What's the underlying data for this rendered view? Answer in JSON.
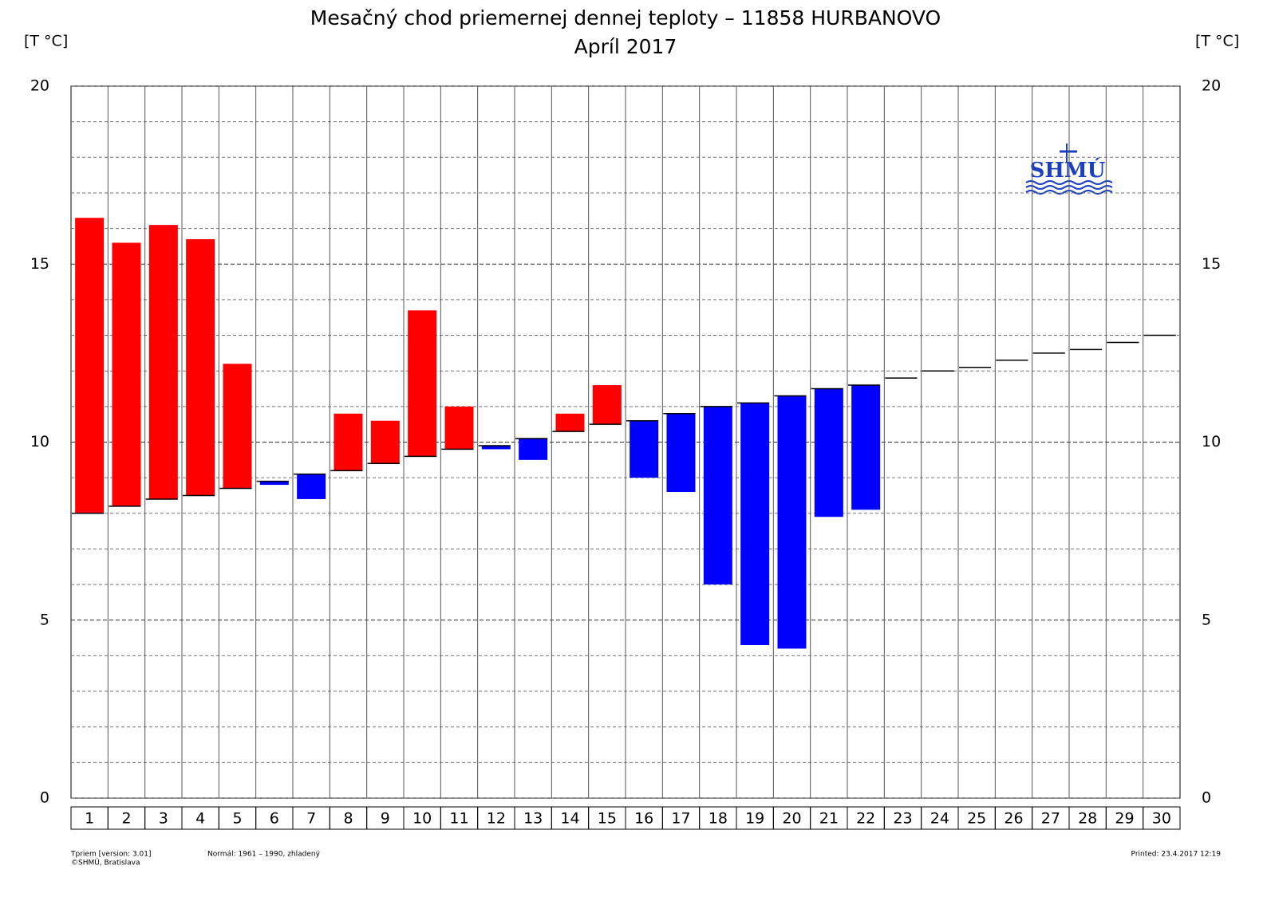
{
  "chart_data": {
    "type": "bar",
    "title": "Mesačný chod priemernej dennej teploty – 11858 HURBANOVO",
    "subtitle": "Apríl 2017",
    "y_label": "[T °C]",
    "categories": [
      "1",
      "2",
      "3",
      "4",
      "5",
      "6",
      "7",
      "8",
      "9",
      "10",
      "11",
      "12",
      "13",
      "14",
      "15",
      "16",
      "17",
      "18",
      "19",
      "20",
      "21",
      "22",
      "23",
      "24",
      "25",
      "26",
      "27",
      "28",
      "29",
      "30"
    ],
    "values": [
      16.3,
      15.6,
      16.1,
      15.7,
      12.2,
      8.8,
      8.4,
      10.8,
      10.6,
      13.7,
      11.0,
      9.8,
      9.5,
      10.8,
      11.6,
      9.0,
      8.6,
      6.0,
      4.3,
      4.2,
      7.9,
      8.1,
      null,
      null,
      null,
      null,
      null,
      null,
      null,
      null
    ],
    "normal": [
      8.0,
      8.2,
      8.4,
      8.5,
      8.7,
      8.9,
      9.1,
      9.2,
      9.4,
      9.6,
      9.8,
      9.9,
      10.1,
      10.3,
      10.5,
      10.6,
      10.8,
      11.0,
      11.1,
      11.3,
      11.5,
      11.6,
      11.8,
      12.0,
      12.1,
      12.3,
      12.5,
      12.6,
      12.8,
      13.0
    ],
    "above_color": "#ff0000",
    "below_color": "#0000ff",
    "normal_color": "#000000",
    "ylim": [
      0,
      20
    ],
    "yticks": [
      0,
      5,
      10,
      15,
      20
    ],
    "minor_yticks": [
      1,
      2,
      3,
      4,
      6,
      7,
      8,
      9,
      11,
      12,
      13,
      14,
      16,
      17,
      18,
      19
    ],
    "grid": true,
    "logo": "SHMÚ",
    "footer_left": [
      "Tpriem [version: 3.01]",
      "©SHMÚ, Bratislava"
    ],
    "footer_middle": "Normál: 1961 – 1990, zhladený",
    "footer_right": "Printed: 23.4.2017  12:19"
  }
}
